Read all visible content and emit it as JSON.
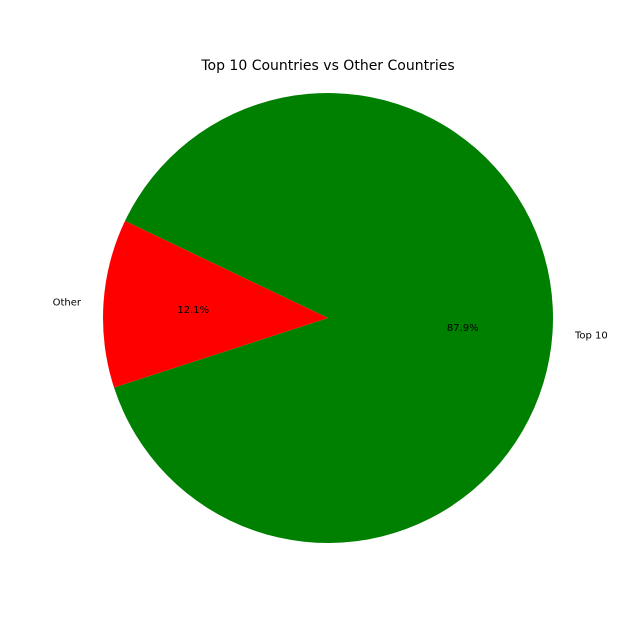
{
  "chart_data": {
    "type": "pie",
    "title": "Top 10 Countries vs Other Countries",
    "slices": [
      {
        "label": "Top 10",
        "value": 87.9,
        "pct_label": "87.9%",
        "color": "#008000"
      },
      {
        "label": "Other",
        "value": 12.1,
        "pct_label": "12.1%",
        "color": "#ff0000"
      }
    ],
    "legend": "none"
  }
}
